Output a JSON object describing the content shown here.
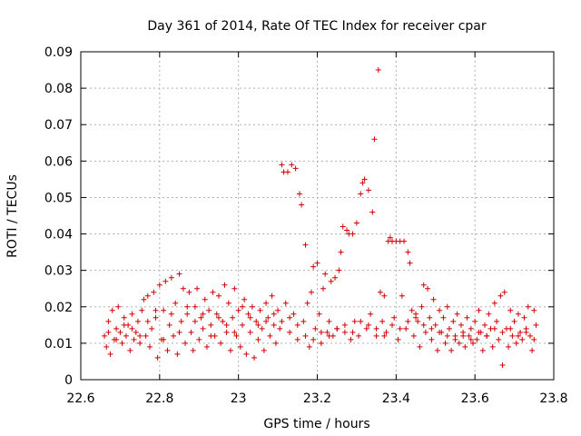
{
  "chart_data": {
    "type": "scatter",
    "title": "Day 361 of 2014, Rate Of TEC Index for receiver cpar",
    "xlabel": "GPS time / hours",
    "ylabel": "ROTI / TECUs",
    "xlim": [
      22.6,
      23.8
    ],
    "ylim": [
      0,
      0.09
    ],
    "xticks": [
      22.6,
      22.8,
      23.0,
      23.2,
      23.4,
      23.6,
      23.8
    ],
    "xtick_labels": [
      "22.6",
      "22.8",
      "23",
      "23.2",
      "23.4",
      "23.6",
      "23.8"
    ],
    "yticks": [
      0,
      0.01,
      0.02,
      0.03,
      0.04,
      0.05,
      0.06,
      0.07,
      0.08,
      0.09
    ],
    "ytick_labels": [
      "0",
      "0.01",
      "0.02",
      "0.03",
      "0.04",
      "0.05",
      "0.06",
      "0.07",
      "0.08",
      "0.09"
    ],
    "grid": true,
    "marker": "+",
    "marker_color": "#d00000",
    "series": [
      {
        "name": "ROTI",
        "points": [
          [
            22.66,
            0.012
          ],
          [
            22.665,
            0.009
          ],
          [
            22.67,
            0.016
          ],
          [
            22.675,
            0.007
          ],
          [
            22.68,
            0.019
          ],
          [
            22.685,
            0.011
          ],
          [
            22.69,
            0.014
          ],
          [
            22.695,
            0.02
          ],
          [
            22.7,
            0.013
          ],
          [
            22.705,
            0.01
          ],
          [
            22.71,
            0.017
          ],
          [
            22.715,
            0.012
          ],
          [
            22.72,
            0.015
          ],
          [
            22.725,
            0.008
          ],
          [
            22.73,
            0.018
          ],
          [
            22.735,
            0.011
          ],
          [
            22.74,
            0.013
          ],
          [
            22.745,
            0.016
          ],
          [
            22.75,
            0.01
          ],
          [
            22.755,
            0.019
          ],
          [
            22.76,
            0.022
          ],
          [
            22.765,
            0.012
          ],
          [
            22.77,
            0.023
          ],
          [
            22.775,
            0.009
          ],
          [
            22.78,
            0.014
          ],
          [
            22.785,
            0.024
          ],
          [
            22.79,
            0.017
          ],
          [
            22.795,
            0.006
          ],
          [
            22.8,
            0.026
          ],
          [
            22.805,
            0.011
          ],
          [
            22.81,
            0.019
          ],
          [
            22.815,
            0.027
          ],
          [
            22.82,
            0.008
          ],
          [
            22.825,
            0.015
          ],
          [
            22.83,
            0.028
          ],
          [
            22.835,
            0.012
          ],
          [
            22.84,
            0.021
          ],
          [
            22.845,
            0.007
          ],
          [
            22.85,
            0.029
          ],
          [
            22.855,
            0.016
          ],
          [
            22.86,
            0.025
          ],
          [
            22.865,
            0.01
          ],
          [
            22.87,
            0.018
          ],
          [
            22.875,
            0.024
          ],
          [
            22.88,
            0.013
          ],
          [
            22.885,
            0.008
          ],
          [
            22.89,
            0.02
          ],
          [
            22.895,
            0.025
          ],
          [
            22.9,
            0.011
          ],
          [
            22.905,
            0.017
          ],
          [
            22.91,
            0.014
          ],
          [
            22.915,
            0.022
          ],
          [
            22.92,
            0.009
          ],
          [
            22.925,
            0.019
          ],
          [
            22.93,
            0.015
          ],
          [
            22.935,
            0.024
          ],
          [
            22.94,
            0.012
          ],
          [
            22.945,
            0.018
          ],
          [
            22.95,
            0.023
          ],
          [
            22.955,
            0.01
          ],
          [
            22.96,
            0.016
          ],
          [
            22.965,
            0.026
          ],
          [
            22.97,
            0.013
          ],
          [
            22.975,
            0.021
          ],
          [
            22.98,
            0.008
          ],
          [
            22.985,
            0.017
          ],
          [
            22.99,
            0.025
          ],
          [
            22.995,
            0.012
          ],
          [
            23.0,
            0.019
          ],
          [
            23.005,
            0.009
          ],
          [
            23.01,
            0.015
          ],
          [
            23.015,
            0.022
          ],
          [
            23.02,
            0.007
          ],
          [
            23.025,
            0.018
          ],
          [
            23.03,
            0.013
          ],
          [
            23.035,
            0.02
          ],
          [
            23.04,
            0.006
          ],
          [
            23.045,
            0.016
          ],
          [
            23.05,
            0.011
          ],
          [
            23.055,
            0.019
          ],
          [
            23.06,
            0.014
          ],
          [
            23.065,
            0.008
          ],
          [
            23.07,
            0.021
          ],
          [
            23.075,
            0.017
          ],
          [
            23.08,
            0.012
          ],
          [
            23.085,
            0.023
          ],
          [
            23.09,
            0.015
          ],
          [
            23.095,
            0.01
          ],
          [
            23.1,
            0.019
          ],
          [
            23.105,
            0.014
          ],
          [
            23.11,
            0.059
          ],
          [
            23.115,
            0.057
          ],
          [
            23.12,
            0.021
          ],
          [
            23.125,
            0.057
          ],
          [
            23.13,
            0.013
          ],
          [
            23.135,
            0.059
          ],
          [
            23.14,
            0.018
          ],
          [
            23.145,
            0.058
          ],
          [
            23.15,
            0.011
          ],
          [
            23.155,
            0.051
          ],
          [
            23.16,
            0.048
          ],
          [
            23.165,
            0.016
          ],
          [
            23.17,
            0.037
          ],
          [
            23.175,
            0.021
          ],
          [
            23.18,
            0.009
          ],
          [
            23.185,
            0.024
          ],
          [
            23.19,
            0.031
          ],
          [
            23.195,
            0.014
          ],
          [
            23.2,
            0.032
          ],
          [
            23.205,
            0.018
          ],
          [
            23.21,
            0.01
          ],
          [
            23.215,
            0.025
          ],
          [
            23.22,
            0.029
          ],
          [
            23.225,
            0.013
          ],
          [
            23.23,
            0.016
          ],
          [
            23.235,
            0.027
          ],
          [
            23.24,
            0.012
          ],
          [
            23.245,
            0.028
          ],
          [
            23.25,
            0.014
          ],
          [
            23.255,
            0.03
          ],
          [
            23.26,
            0.035
          ],
          [
            23.265,
            0.042
          ],
          [
            23.27,
            0.013
          ],
          [
            23.275,
            0.041
          ],
          [
            23.28,
            0.04
          ],
          [
            23.285,
            0.011
          ],
          [
            23.29,
            0.04
          ],
          [
            23.295,
            0.016
          ],
          [
            23.3,
            0.043
          ],
          [
            23.305,
            0.012
          ],
          [
            23.31,
            0.051
          ],
          [
            23.315,
            0.054
          ],
          [
            23.32,
            0.055
          ],
          [
            23.325,
            0.014
          ],
          [
            23.33,
            0.052
          ],
          [
            23.335,
            0.018
          ],
          [
            23.34,
            0.046
          ],
          [
            23.345,
            0.066
          ],
          [
            23.35,
            0.012
          ],
          [
            23.355,
            0.085
          ],
          [
            23.36,
            0.024
          ],
          [
            23.365,
            0.016
          ],
          [
            23.37,
            0.023
          ],
          [
            23.375,
            0.013
          ],
          [
            23.38,
            0.038
          ],
          [
            23.385,
            0.039
          ],
          [
            23.39,
            0.038
          ],
          [
            23.395,
            0.017
          ],
          [
            23.4,
            0.038
          ],
          [
            23.405,
            0.011
          ],
          [
            23.41,
            0.038
          ],
          [
            23.415,
            0.023
          ],
          [
            23.42,
            0.038
          ],
          [
            23.425,
            0.014
          ],
          [
            23.43,
            0.035
          ],
          [
            23.435,
            0.032
          ],
          [
            23.44,
            0.019
          ],
          [
            23.445,
            0.012
          ],
          [
            23.45,
            0.018
          ],
          [
            23.455,
            0.016
          ],
          [
            23.46,
            0.009
          ],
          [
            23.465,
            0.02
          ],
          [
            23.47,
            0.026
          ],
          [
            23.475,
            0.013
          ],
          [
            23.48,
            0.025
          ],
          [
            23.485,
            0.017
          ],
          [
            23.49,
            0.011
          ],
          [
            23.495,
            0.022
          ],
          [
            23.5,
            0.015
          ],
          [
            23.505,
            0.008
          ],
          [
            23.51,
            0.019
          ],
          [
            23.515,
            0.013
          ],
          [
            23.52,
            0.017
          ],
          [
            23.525,
            0.01
          ],
          [
            23.53,
            0.02
          ],
          [
            23.535,
            0.014
          ],
          [
            23.54,
            0.008
          ],
          [
            23.545,
            0.016
          ],
          [
            23.55,
            0.012
          ],
          [
            23.555,
            0.018
          ],
          [
            23.56,
            0.01
          ],
          [
            23.565,
            0.015
          ],
          [
            23.57,
            0.013
          ],
          [
            23.575,
            0.009
          ],
          [
            23.58,
            0.017
          ],
          [
            23.585,
            0.012
          ],
          [
            23.59,
            0.014
          ],
          [
            23.595,
            0.01
          ],
          [
            23.6,
            0.016
          ],
          [
            23.605,
            0.011
          ],
          [
            23.61,
            0.019
          ],
          [
            23.615,
            0.013
          ],
          [
            23.62,
            0.008
          ],
          [
            23.625,
            0.015
          ],
          [
            23.63,
            0.012
          ],
          [
            23.635,
            0.018
          ],
          [
            23.64,
            0.014
          ],
          [
            23.645,
            0.009
          ],
          [
            23.65,
            0.021
          ],
          [
            23.655,
            0.016
          ],
          [
            23.66,
            0.011
          ],
          [
            23.665,
            0.023
          ],
          [
            23.67,
            0.004
          ],
          [
            23.675,
            0.024
          ],
          [
            23.68,
            0.014
          ],
          [
            23.685,
            0.009
          ],
          [
            23.69,
            0.019
          ],
          [
            23.695,
            0.012
          ],
          [
            23.7,
            0.016
          ],
          [
            23.705,
            0.01
          ],
          [
            23.71,
            0.018
          ],
          [
            23.715,
            0.013
          ],
          [
            23.72,
            0.011
          ],
          [
            23.725,
            0.017
          ],
          [
            23.73,
            0.014
          ],
          [
            23.735,
            0.02
          ],
          [
            23.74,
            0.012
          ],
          [
            23.745,
            0.008
          ],
          [
            23.75,
            0.019
          ],
          [
            23.755,
            0.015
          ],
          [
            22.67,
            0.013
          ],
          [
            22.69,
            0.011
          ],
          [
            22.71,
            0.015
          ],
          [
            22.73,
            0.014
          ],
          [
            22.75,
            0.012
          ],
          [
            22.77,
            0.016
          ],
          [
            22.79,
            0.019
          ],
          [
            22.81,
            0.011
          ],
          [
            22.83,
            0.018
          ],
          [
            22.85,
            0.013
          ],
          [
            22.87,
            0.02
          ],
          [
            22.89,
            0.016
          ],
          [
            22.91,
            0.018
          ],
          [
            22.93,
            0.012
          ],
          [
            22.95,
            0.017
          ],
          [
            22.97,
            0.015
          ],
          [
            22.99,
            0.013
          ],
          [
            23.01,
            0.02
          ],
          [
            23.03,
            0.017
          ],
          [
            23.05,
            0.015
          ],
          [
            23.07,
            0.016
          ],
          [
            23.09,
            0.018
          ],
          [
            23.11,
            0.016
          ],
          [
            23.13,
            0.017
          ],
          [
            23.15,
            0.015
          ],
          [
            23.17,
            0.012
          ],
          [
            23.19,
            0.011
          ],
          [
            23.21,
            0.013
          ],
          [
            23.23,
            0.012
          ],
          [
            23.25,
            0.014
          ],
          [
            23.27,
            0.015
          ],
          [
            23.29,
            0.013
          ],
          [
            23.31,
            0.016
          ],
          [
            23.33,
            0.015
          ],
          [
            23.35,
            0.014
          ],
          [
            23.37,
            0.012
          ],
          [
            23.39,
            0.015
          ],
          [
            23.41,
            0.014
          ],
          [
            23.43,
            0.016
          ],
          [
            23.45,
            0.017
          ],
          [
            23.47,
            0.015
          ],
          [
            23.49,
            0.014
          ],
          [
            23.51,
            0.013
          ],
          [
            23.53,
            0.012
          ],
          [
            23.55,
            0.011
          ],
          [
            23.57,
            0.012
          ],
          [
            23.59,
            0.011
          ],
          [
            23.61,
            0.013
          ],
          [
            23.63,
            0.012
          ],
          [
            23.65,
            0.014
          ],
          [
            23.67,
            0.013
          ],
          [
            23.69,
            0.014
          ],
          [
            23.71,
            0.012
          ],
          [
            23.73,
            0.013
          ],
          [
            23.75,
            0.011
          ]
        ]
      }
    ]
  }
}
